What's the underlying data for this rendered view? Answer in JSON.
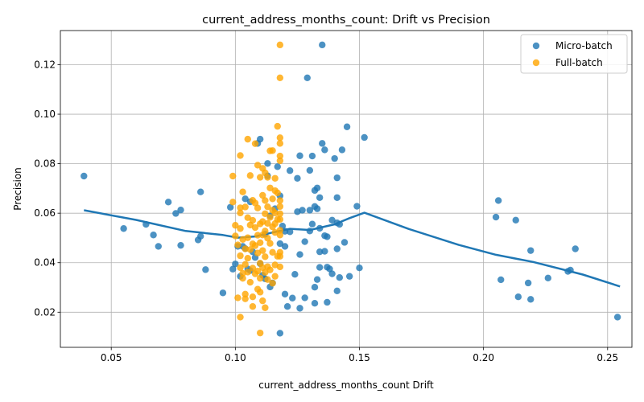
{
  "chart_data": {
    "type": "scatter",
    "title": "current_address_months_count: Drift vs Precision",
    "xlabel": "current_address_months_count Drift",
    "ylabel": "Precision",
    "xlim": [
      0.0295,
      0.2598
    ],
    "ylim": [
      0.0058,
      0.1338
    ],
    "xticks": [
      "0.05",
      "0.10",
      "0.15",
      "0.20",
      "0.25"
    ],
    "yticks": [
      "0.02",
      "0.04",
      "0.06",
      "0.08",
      "0.10",
      "0.12"
    ],
    "grid": true,
    "legend_position": "top-right",
    "colors": {
      "Micro-batch": "#1f77b4",
      "Full-batch": "#ffa500",
      "trend": "#1f77b4"
    },
    "series": [
      {
        "name": "Micro-batch",
        "marker": "circle",
        "points": [
          [
            0.039,
            0.075
          ],
          [
            0.055,
            0.0538
          ],
          [
            0.064,
            0.0555
          ],
          [
            0.067,
            0.0512
          ],
          [
            0.069,
            0.0466
          ],
          [
            0.073,
            0.0645
          ],
          [
            0.076,
            0.0599
          ],
          [
            0.078,
            0.0613
          ],
          [
            0.078,
            0.047
          ],
          [
            0.085,
            0.0492
          ],
          [
            0.086,
            0.0507
          ],
          [
            0.086,
            0.0686
          ],
          [
            0.088,
            0.0372
          ],
          [
            0.095,
            0.0278
          ],
          [
            0.098,
            0.0624
          ],
          [
            0.099,
            0.0374
          ],
          [
            0.1,
            0.0395
          ],
          [
            0.101,
            0.0466
          ],
          [
            0.102,
            0.0345
          ],
          [
            0.103,
            0.0466
          ],
          [
            0.104,
            0.0658
          ],
          [
            0.104,
            0.0457
          ],
          [
            0.105,
            0.0375
          ],
          [
            0.106,
            0.0646
          ],
          [
            0.106,
            0.0368
          ],
          [
            0.107,
            0.0444
          ],
          [
            0.108,
            0.0421
          ],
          [
            0.109,
            0.0882
          ],
          [
            0.11,
            0.0899
          ],
          [
            0.11,
            0.0396
          ],
          [
            0.111,
            0.0349
          ],
          [
            0.112,
            0.0515
          ],
          [
            0.112,
            0.0335
          ],
          [
            0.113,
            0.0801
          ],
          [
            0.113,
            0.0751
          ],
          [
            0.114,
            0.0589
          ],
          [
            0.114,
            0.0302
          ],
          [
            0.115,
            0.0318
          ],
          [
            0.116,
            0.0618
          ],
          [
            0.117,
            0.0788
          ],
          [
            0.118,
            0.0115
          ],
          [
            0.118,
            0.0477
          ],
          [
            0.118,
            0.067
          ],
          [
            0.119,
            0.0548
          ],
          [
            0.12,
            0.0527
          ],
          [
            0.12,
            0.0466
          ],
          [
            0.12,
            0.0273
          ],
          [
            0.121,
            0.0223
          ],
          [
            0.122,
            0.0525
          ],
          [
            0.122,
            0.0772
          ],
          [
            0.123,
            0.0257
          ],
          [
            0.124,
            0.0353
          ],
          [
            0.125,
            0.0741
          ],
          [
            0.125,
            0.0606
          ],
          [
            0.126,
            0.0832
          ],
          [
            0.126,
            0.0433
          ],
          [
            0.126,
            0.0216
          ],
          [
            0.127,
            0.0612
          ],
          [
            0.128,
            0.0485
          ],
          [
            0.128,
            0.0258
          ],
          [
            0.129,
            0.1147
          ],
          [
            0.13,
            0.0773
          ],
          [
            0.13,
            0.0612
          ],
          [
            0.13,
            0.0528
          ],
          [
            0.131,
            0.0556
          ],
          [
            0.131,
            0.0831
          ],
          [
            0.132,
            0.0692
          ],
          [
            0.132,
            0.0627
          ],
          [
            0.132,
            0.0301
          ],
          [
            0.132,
            0.0236
          ],
          [
            0.133,
            0.0702
          ],
          [
            0.133,
            0.0618
          ],
          [
            0.133,
            0.0332
          ],
          [
            0.134,
            0.0444
          ],
          [
            0.134,
            0.0539
          ],
          [
            0.134,
            0.0663
          ],
          [
            0.134,
            0.0381
          ],
          [
            0.135,
            0.128
          ],
          [
            0.135,
            0.0882
          ],
          [
            0.136,
            0.0856
          ],
          [
            0.136,
            0.0446
          ],
          [
            0.136,
            0.0509
          ],
          [
            0.137,
            0.0505
          ],
          [
            0.137,
            0.0382
          ],
          [
            0.137,
            0.024
          ],
          [
            0.138,
            0.0375
          ],
          [
            0.139,
            0.0572
          ],
          [
            0.139,
            0.0355
          ],
          [
            0.14,
            0.0821
          ],
          [
            0.141,
            0.0561
          ],
          [
            0.141,
            0.0743
          ],
          [
            0.141,
            0.0663
          ],
          [
            0.141,
            0.0456
          ],
          [
            0.141,
            0.0286
          ],
          [
            0.142,
            0.0555
          ],
          [
            0.142,
            0.034
          ],
          [
            0.143,
            0.0856
          ],
          [
            0.144,
            0.0482
          ],
          [
            0.145,
            0.0949
          ],
          [
            0.146,
            0.0345
          ],
          [
            0.149,
            0.0628
          ],
          [
            0.15,
            0.0379
          ],
          [
            0.152,
            0.0906
          ],
          [
            0.205,
            0.0584
          ],
          [
            0.206,
            0.0651
          ],
          [
            0.207,
            0.0331
          ],
          [
            0.213,
            0.0572
          ],
          [
            0.214,
            0.0262
          ],
          [
            0.218,
            0.0318
          ],
          [
            0.219,
            0.0449
          ],
          [
            0.219,
            0.0252
          ],
          [
            0.226,
            0.0338
          ],
          [
            0.234,
            0.0365
          ],
          [
            0.235,
            0.037
          ],
          [
            0.237,
            0.0456
          ],
          [
            0.254,
            0.018
          ]
        ]
      },
      {
        "name": "Full-batch",
        "marker": "circle",
        "points": [
          [
            0.099,
            0.075
          ],
          [
            0.099,
            0.0645
          ],
          [
            0.1,
            0.0551
          ],
          [
            0.1,
            0.0508
          ],
          [
            0.101,
            0.0472
          ],
          [
            0.101,
            0.0258
          ],
          [
            0.102,
            0.0833
          ],
          [
            0.102,
            0.0622
          ],
          [
            0.102,
            0.0601
          ],
          [
            0.102,
            0.0538
          ],
          [
            0.102,
            0.0428
          ],
          [
            0.102,
            0.038
          ],
          [
            0.102,
            0.018
          ],
          [
            0.103,
            0.0686
          ],
          [
            0.103,
            0.0494
          ],
          [
            0.103,
            0.0357
          ],
          [
            0.103,
            0.0337
          ],
          [
            0.104,
            0.0625
          ],
          [
            0.104,
            0.0456
          ],
          [
            0.104,
            0.0393
          ],
          [
            0.104,
            0.0273
          ],
          [
            0.104,
            0.0254
          ],
          [
            0.105,
            0.0899
          ],
          [
            0.105,
            0.0582
          ],
          [
            0.105,
            0.0501
          ],
          [
            0.105,
            0.0418
          ],
          [
            0.105,
            0.0362
          ],
          [
            0.106,
            0.0752
          ],
          [
            0.106,
            0.0552
          ],
          [
            0.106,
            0.0453
          ],
          [
            0.106,
            0.0321
          ],
          [
            0.107,
            0.0652
          ],
          [
            0.107,
            0.0571
          ],
          [
            0.107,
            0.0476
          ],
          [
            0.107,
            0.0378
          ],
          [
            0.107,
            0.0262
          ],
          [
            0.107,
            0.0223
          ],
          [
            0.108,
            0.0881
          ],
          [
            0.108,
            0.0641
          ],
          [
            0.108,
            0.0542
          ],
          [
            0.108,
            0.0469
          ],
          [
            0.108,
            0.0355
          ],
          [
            0.109,
            0.0794
          ],
          [
            0.109,
            0.0621
          ],
          [
            0.109,
            0.0511
          ],
          [
            0.109,
            0.0439
          ],
          [
            0.109,
            0.0366
          ],
          [
            0.109,
            0.0293
          ],
          [
            0.11,
            0.0745
          ],
          [
            0.11,
            0.0557
          ],
          [
            0.11,
            0.0481
          ],
          [
            0.11,
            0.0398
          ],
          [
            0.11,
            0.0337
          ],
          [
            0.11,
            0.0281
          ],
          [
            0.11,
            0.0116
          ],
          [
            0.111,
            0.0781
          ],
          [
            0.111,
            0.0672
          ],
          [
            0.111,
            0.0566
          ],
          [
            0.111,
            0.0512
          ],
          [
            0.111,
            0.0449
          ],
          [
            0.111,
            0.038
          ],
          [
            0.111,
            0.0246
          ],
          [
            0.112,
            0.0763
          ],
          [
            0.112,
            0.0651
          ],
          [
            0.112,
            0.0598
          ],
          [
            0.112,
            0.0528
          ],
          [
            0.112,
            0.0424
          ],
          [
            0.112,
            0.0361
          ],
          [
            0.112,
            0.0218
          ],
          [
            0.113,
            0.0745
          ],
          [
            0.113,
            0.0626
          ],
          [
            0.113,
            0.0559
          ],
          [
            0.113,
            0.0499
          ],
          [
            0.113,
            0.0384
          ],
          [
            0.113,
            0.0332
          ],
          [
            0.114,
            0.0852
          ],
          [
            0.114,
            0.0702
          ],
          [
            0.114,
            0.0583
          ],
          [
            0.114,
            0.0478
          ],
          [
            0.114,
            0.0371
          ],
          [
            0.115,
            0.0853
          ],
          [
            0.115,
            0.0658
          ],
          [
            0.115,
            0.0612
          ],
          [
            0.115,
            0.0545
          ],
          [
            0.115,
            0.0442
          ],
          [
            0.115,
            0.0317
          ],
          [
            0.116,
            0.0741
          ],
          [
            0.116,
            0.0691
          ],
          [
            0.116,
            0.0601
          ],
          [
            0.116,
            0.0558
          ],
          [
            0.116,
            0.0522
          ],
          [
            0.116,
            0.0391
          ],
          [
            0.116,
            0.0345
          ],
          [
            0.117,
            0.0951
          ],
          [
            0.117,
            0.0682
          ],
          [
            0.117,
            0.0575
          ],
          [
            0.117,
            0.0426
          ],
          [
            0.118,
            0.128
          ],
          [
            0.118,
            0.1147
          ],
          [
            0.118,
            0.0905
          ],
          [
            0.118,
            0.0882
          ],
          [
            0.118,
            0.0831
          ],
          [
            0.118,
            0.0812
          ],
          [
            0.118,
            0.0651
          ],
          [
            0.118,
            0.0627
          ],
          [
            0.118,
            0.0598
          ],
          [
            0.118,
            0.0575
          ],
          [
            0.118,
            0.0531
          ],
          [
            0.118,
            0.0512
          ],
          [
            0.118,
            0.0442
          ],
          [
            0.118,
            0.0426
          ],
          [
            0.118,
            0.0383
          ]
        ]
      }
    ],
    "trend": {
      "name": "",
      "x": [
        0.039,
        0.06,
        0.08,
        0.095,
        0.101,
        0.108,
        0.115,
        0.122,
        0.13,
        0.14,
        0.146,
        0.152,
        0.17,
        0.19,
        0.205,
        0.22,
        0.24,
        0.255
      ],
      "y": [
        0.0612,
        0.0573,
        0.0528,
        0.0512,
        0.0501,
        0.0506,
        0.0522,
        0.0537,
        0.0532,
        0.0555,
        0.058,
        0.0602,
        0.0536,
        0.0472,
        0.0432,
        0.0403,
        0.0352,
        0.0304
      ]
    }
  }
}
